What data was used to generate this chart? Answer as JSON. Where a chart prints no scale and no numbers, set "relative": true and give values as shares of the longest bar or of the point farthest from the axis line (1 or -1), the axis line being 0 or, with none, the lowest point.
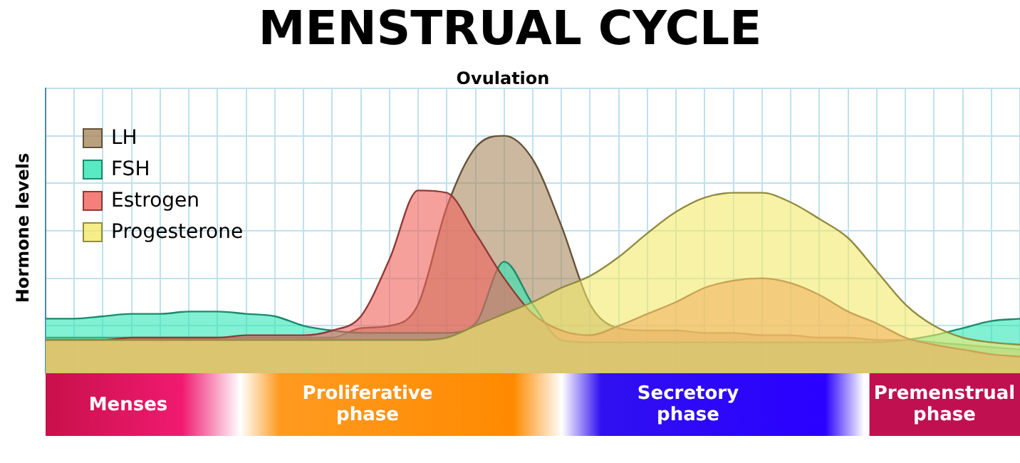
{
  "chart_data": {
    "type": "area",
    "title": "MENSTRUAL CYCLE",
    "ylabel": "Hormone levels",
    "relative": true,
    "grid": true,
    "legend": "top left",
    "annotations": [
      "Ovulation",
      "Menses",
      "Proliferative phase",
      "Secretory phase",
      "Premenstrual phase"
    ],
    "categories": [
      null,
      null,
      null,
      null,
      null,
      null,
      null,
      null,
      null,
      null,
      null,
      null,
      null,
      null,
      null,
      null,
      null,
      null,
      null,
      null,
      null,
      null,
      null,
      null,
      null,
      null,
      null,
      null,
      null,
      null,
      null,
      null,
      null,
      null,
      null
    ],
    "series": [
      {
        "name": "Progesterone",
        "color": "#f2ea6a",
        "values": [
          0.14,
          0.14,
          0.14,
          0.14,
          0.14,
          0.14,
          0.14,
          0.14,
          0.14,
          0.14,
          0.14,
          0.14,
          0.14,
          0.14,
          0.15,
          0.2,
          0.25,
          0.3,
          0.36,
          0.41,
          0.49,
          0.59,
          0.68,
          0.74,
          0.76,
          0.76,
          0.72,
          0.65,
          0.57,
          0.43,
          0.29,
          0.2,
          0.15,
          0.13,
          0.12
        ]
      },
      {
        "name": "Estrogen",
        "color": "#f0605a",
        "values": [
          0.14,
          0.14,
          0.14,
          0.15,
          0.15,
          0.15,
          0.15,
          0.16,
          0.16,
          0.16,
          0.18,
          0.24,
          0.48,
          0.77,
          0.76,
          0.59,
          0.4,
          0.25,
          0.18,
          0.16,
          0.2,
          0.25,
          0.3,
          0.36,
          0.39,
          0.4,
          0.38,
          0.33,
          0.26,
          0.21,
          0.15,
          0.12,
          0.1,
          0.08,
          0.07
        ]
      },
      {
        "name": "FSH",
        "color": "#2ee6b4",
        "values": [
          0.23,
          0.23,
          0.24,
          0.25,
          0.25,
          0.26,
          0.26,
          0.25,
          0.24,
          0.2,
          0.18,
          0.17,
          0.17,
          0.17,
          0.17,
          0.21,
          0.47,
          0.29,
          0.14,
          0.13,
          0.13,
          0.13,
          0.13,
          0.13,
          0.13,
          0.13,
          0.13,
          0.13,
          0.13,
          0.13,
          0.14,
          0.16,
          0.19,
          0.22,
          0.23
        ]
      },
      {
        "name": "LH",
        "color": "#a8885f",
        "values": [
          0.15,
          0.15,
          0.15,
          0.15,
          0.15,
          0.15,
          0.15,
          0.15,
          0.15,
          0.15,
          0.15,
          0.19,
          0.2,
          0.29,
          0.7,
          0.95,
          1,
          0.9,
          0.62,
          0.29,
          0.19,
          0.18,
          0.18,
          0.17,
          0.17,
          0.16,
          0.16,
          0.15,
          0.15,
          0.14,
          0.14,
          0.13,
          0.12,
          0.11,
          0.1
        ]
      }
    ]
  }
}
